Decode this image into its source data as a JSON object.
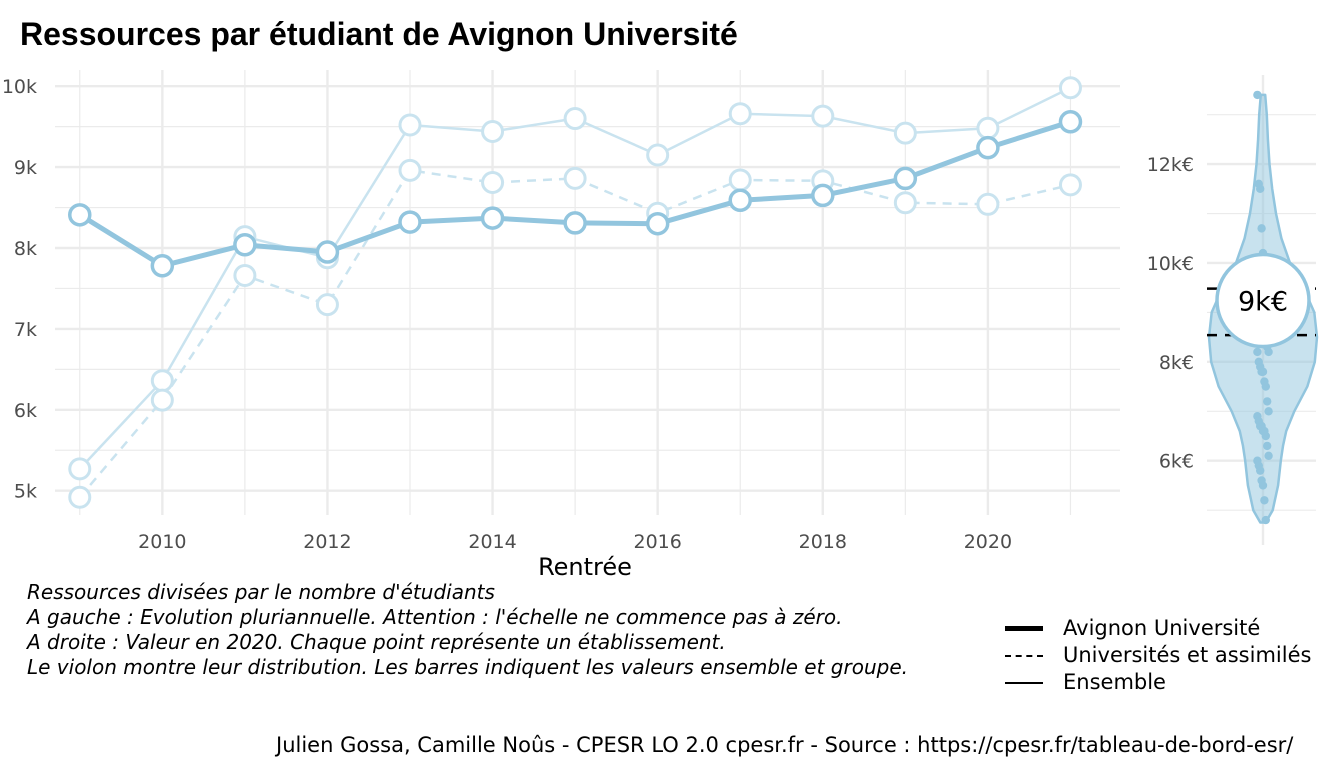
{
  "title": "Ressources par étudiant de Avignon Université",
  "caption_lines": [
    "Ressources divisées par le nombre d'étudiants",
    "A gauche : Evolution pluriannuelle. Attention : l'échelle ne commence pas à zéro.",
    "A droite : Valeur en 2020. Chaque point représente un établissement.",
    "Le violon montre leur distribution. Les barres indiquent les valeurs ensemble et groupe."
  ],
  "legend": [
    {
      "label": "Avignon Université",
      "style": "thick-solid"
    },
    {
      "label": "Universités et assimilés",
      "style": "dashed"
    },
    {
      "label": "Ensemble",
      "style": "solid"
    }
  ],
  "credits": "Julien Gossa, Camille Noûs - CPESR LO 2.0 cpesr.fr - Source : https://cpesr.fr/tableau-de-bord-esr/",
  "colors": {
    "accent": "#92c5de",
    "light": "#c9e3ef",
    "grid": "#ebebeb",
    "axis_text": "#4d4d4d"
  },
  "chart_data": [
    {
      "type": "line",
      "xlabel": "Rentrée",
      "ylabel": "",
      "xlim": [
        2008.7,
        2021.6
      ],
      "ylim": [
        4700,
        10200
      ],
      "x_ticks": [
        2010,
        2012,
        2014,
        2016,
        2018,
        2020
      ],
      "y_ticks": [
        5000,
        6000,
        7000,
        8000,
        9000,
        10000
      ],
      "y_tick_labels": [
        "5k",
        "6k",
        "7k",
        "8k",
        "9k",
        "10k"
      ],
      "grid": true,
      "x": [
        2009,
        2010,
        2011,
        2012,
        2013,
        2014,
        2015,
        2016,
        2017,
        2018,
        2019,
        2020,
        2021
      ],
      "series": [
        {
          "name": "Ensemble",
          "style": "solid-light",
          "values": [
            5270,
            6360,
            8140,
            7880,
            9520,
            9440,
            9600,
            9150,
            9660,
            9630,
            9420,
            9480,
            9980
          ]
        },
        {
          "name": "Universités et assimilés",
          "style": "dashed-light",
          "values": [
            4920,
            6120,
            7660,
            7300,
            8960,
            8810,
            8860,
            8430,
            8840,
            8830,
            8560,
            8540,
            8780
          ]
        },
        {
          "name": "Avignon Université",
          "style": "thick",
          "values": [
            8410,
            7780,
            8040,
            7950,
            8320,
            8370,
            8310,
            8300,
            8590,
            8650,
            8860,
            9240,
            9560
          ]
        }
      ]
    },
    {
      "type": "violin",
      "ylim": [
        4700,
        13600
      ],
      "y_ticks": [
        6000,
        8000,
        10000,
        12000
      ],
      "y_tick_labels": [
        "6k€",
        "8k€",
        "10k€",
        "12k€"
      ],
      "grid": true,
      "label": "9k€",
      "highlight_value": 9240,
      "reference_lines": [
        {
          "name": "Ensemble",
          "value": 9480
        },
        {
          "name": "Universités et assimilés",
          "value": 8540
        }
      ],
      "points": [
        13400,
        11600,
        11500,
        10700,
        10200,
        9700,
        9500,
        9300,
        9100,
        9000,
        8900,
        8800,
        8700,
        8600,
        8500,
        8400,
        8300,
        8200,
        8200,
        8000,
        7900,
        7800,
        7800,
        7600,
        7500,
        7200,
        7000,
        6900,
        6800,
        6700,
        6700,
        6600,
        6600,
        6500,
        6300,
        6100,
        6000,
        5900,
        5800,
        5600,
        5500,
        5200,
        4800
      ],
      "density": [
        [
          4750,
          0.05
        ],
        [
          5000,
          0.18
        ],
        [
          5500,
          0.28
        ],
        [
          6000,
          0.33
        ],
        [
          6300,
          0.37
        ],
        [
          6600,
          0.43
        ],
        [
          7000,
          0.58
        ],
        [
          7500,
          0.82
        ],
        [
          8000,
          0.96
        ],
        [
          8500,
          1.0
        ],
        [
          9000,
          0.95
        ],
        [
          9500,
          0.75
        ],
        [
          10000,
          0.5
        ],
        [
          10500,
          0.34
        ],
        [
          11000,
          0.24
        ],
        [
          11500,
          0.17
        ],
        [
          12000,
          0.12
        ],
        [
          12500,
          0.09
        ],
        [
          13000,
          0.07
        ],
        [
          13400,
          0.04
        ]
      ]
    }
  ]
}
